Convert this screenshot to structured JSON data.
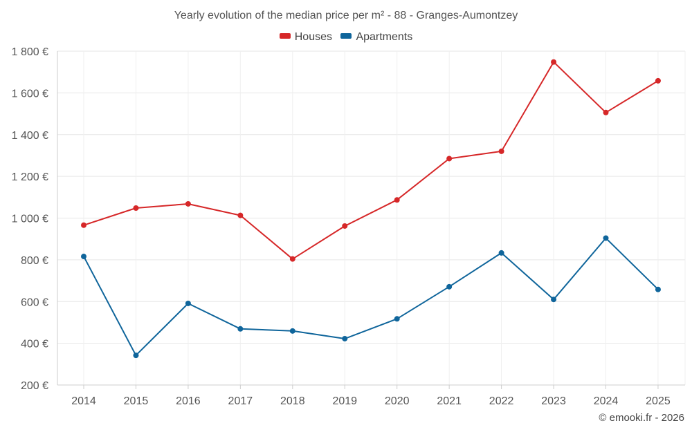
{
  "chart_data": {
    "type": "line",
    "title": "Yearly evolution of the median price per m² - 88 - Granges-Aumontzey",
    "xlabel": "",
    "ylabel": "",
    "categories": [
      "2014",
      "2015",
      "2016",
      "2017",
      "2018",
      "2019",
      "2020",
      "2021",
      "2022",
      "2023",
      "2024",
      "2025"
    ],
    "ylim": [
      200,
      1800
    ],
    "yticks": [
      200,
      400,
      600,
      800,
      1000,
      1200,
      1400,
      1600,
      1800
    ],
    "ytick_labels": [
      "200 €",
      "400 €",
      "600 €",
      "800 €",
      "1 000 €",
      "1 200 €",
      "1 400 €",
      "1 600 €",
      "1 800 €"
    ],
    "grid": true,
    "legend_position": "top-center",
    "series": [
      {
        "name": "Houses",
        "color": "#d62728",
        "values": [
          966,
          1048,
          1068,
          1013,
          804,
          962,
          1087,
          1285,
          1320,
          1748,
          1506,
          1658
        ]
      },
      {
        "name": "Apartments",
        "color": "#0f659b",
        "values": [
          816,
          342,
          591,
          469,
          459,
          422,
          517,
          671,
          833,
          610,
          904,
          658
        ]
      }
    ]
  },
  "credit": "© emooki.fr - 2026"
}
